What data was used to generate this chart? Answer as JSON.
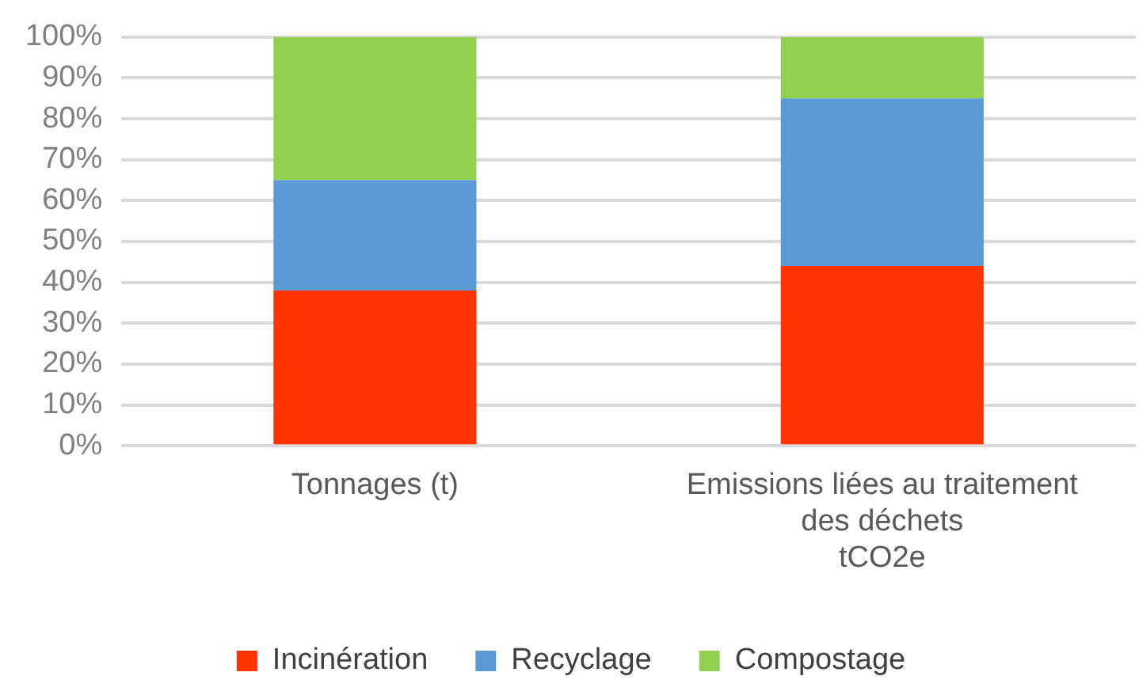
{
  "chart_data": {
    "type": "bar",
    "stacked": true,
    "categories": [
      "Tonnages (t)",
      "Emissions liées au traitement des déchets\ntCO2e"
    ],
    "series": [
      {
        "name": "Incinération",
        "color": "#ff3300",
        "values": [
          38,
          44
        ]
      },
      {
        "name": "Recyclage",
        "color": "#5b9bd5",
        "values": [
          27,
          41
        ]
      },
      {
        "name": "Compostage",
        "color": "#92d050",
        "values": [
          35,
          15
        ]
      }
    ],
    "ylim": [
      0,
      100
    ],
    "yticks": [
      {
        "value": 0,
        "label": "0%"
      },
      {
        "value": 10,
        "label": "10%"
      },
      {
        "value": 20,
        "label": "20%"
      },
      {
        "value": 30,
        "label": "30%"
      },
      {
        "value": 40,
        "label": "40%"
      },
      {
        "value": 50,
        "label": "50%"
      },
      {
        "value": 60,
        "label": "60%"
      },
      {
        "value": 70,
        "label": "70%"
      },
      {
        "value": 80,
        "label": "80%"
      },
      {
        "value": 90,
        "label": "90%"
      },
      {
        "value": 100,
        "label": "100%"
      }
    ],
    "grid": "y",
    "legend": "bottom"
  }
}
